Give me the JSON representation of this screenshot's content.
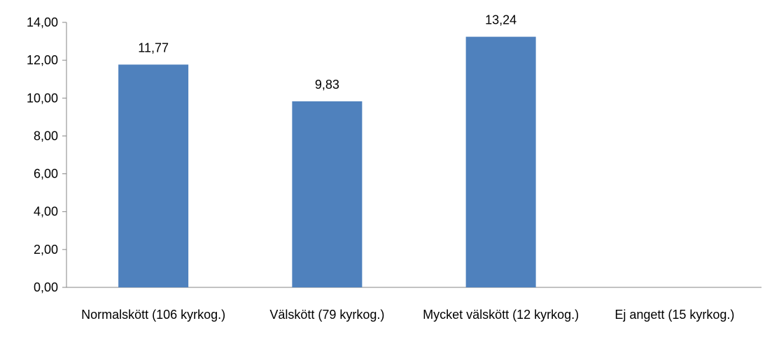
{
  "chart_data": {
    "type": "bar",
    "categories": [
      "Normalskött (106 kyrkog.)",
      "Välskött (79 kyrkog.)",
      "Mycket välskött (12 kyrkog.)",
      "Ej angett (15 kyrkog.)"
    ],
    "values": [
      11.77,
      9.83,
      13.24,
      null
    ],
    "value_labels": [
      "11,77",
      "9,83",
      "13,24",
      null
    ],
    "color": "#4f81bd",
    "ylim": [
      0,
      14
    ],
    "yticks": [
      {
        "value": 0,
        "label": "0,00"
      },
      {
        "value": 2,
        "label": "2,00"
      },
      {
        "value": 4,
        "label": "4,00"
      },
      {
        "value": 6,
        "label": "6,00"
      },
      {
        "value": 8,
        "label": "8,00"
      },
      {
        "value": 10,
        "label": "10,00"
      },
      {
        "value": 12,
        "label": "12,00"
      },
      {
        "value": 14,
        "label": "14,00"
      }
    ],
    "grid": false
  }
}
